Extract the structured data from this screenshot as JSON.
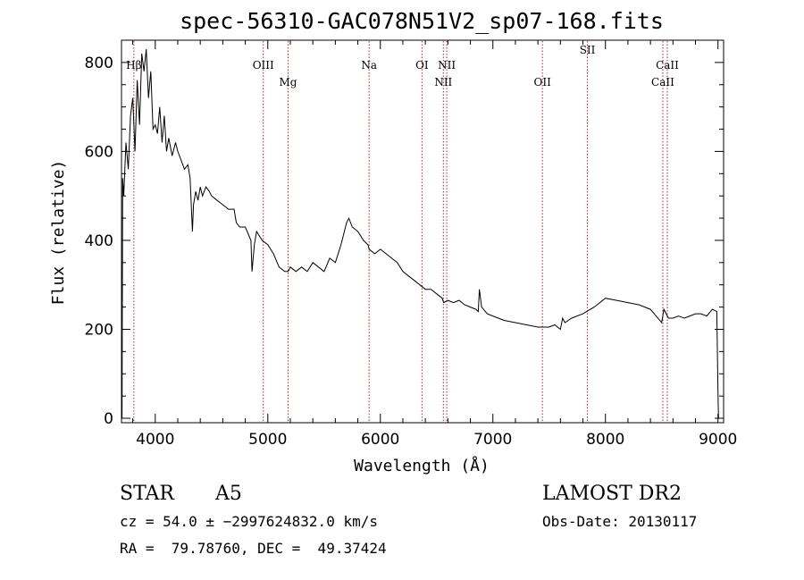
{
  "chart_data": {
    "type": "line",
    "title": "spec-56310-GAC078N51V2_sp07-168.fits",
    "xlabel": "Wavelength (Å)",
    "ylabel": "Flux (relative)",
    "xlim": [
      3700,
      9050
    ],
    "ylim": [
      -10,
      850
    ],
    "xticks": [
      4000,
      5000,
      6000,
      7000,
      8000,
      9000
    ],
    "yticks": [
      0,
      200,
      400,
      600,
      800
    ],
    "series": [
      {
        "x": [
          3705,
          3710,
          3720,
          3740,
          3760,
          3780,
          3800,
          3820,
          3840,
          3860,
          3880,
          3900,
          3920,
          3940,
          3960,
          3980,
          4000,
          4020,
          4040,
          4060,
          4080,
          4100,
          4120,
          4150,
          4180,
          4200,
          4230,
          4260,
          4290,
          4310,
          4330,
          4340,
          4360,
          4380,
          4400,
          4420,
          4450,
          4480,
          4500,
          4550,
          4600,
          4650,
          4700,
          4720,
          4750,
          4800,
          4850,
          4860,
          4880,
          4900,
          4950,
          5000,
          5050,
          5100,
          5150,
          5180,
          5200,
          5250,
          5300,
          5350,
          5400,
          5450,
          5500,
          5550,
          5600,
          5650,
          5700,
          5720,
          5750,
          5800,
          5850,
          5890,
          5900,
          5950,
          6000,
          6050,
          6100,
          6150,
          6200,
          6250,
          6300,
          6350,
          6400,
          6450,
          6500,
          6550,
          6563,
          6600,
          6650,
          6700,
          6750,
          6800,
          6850,
          6870,
          6880,
          6900,
          6950,
          7000,
          7100,
          7200,
          7300,
          7400,
          7450,
          7500,
          7550,
          7600,
          7620,
          7640,
          7700,
          7800,
          7900,
          8000,
          8100,
          8200,
          8300,
          8400,
          8450,
          8500,
          8520,
          8560,
          8600,
          8650,
          8700,
          8750,
          8800,
          8850,
          8900,
          8950,
          8990,
          9000,
          9005,
          9010
        ],
        "y": [
          0,
          540,
          500,
          620,
          560,
          680,
          720,
          600,
          760,
          660,
          820,
          780,
          830,
          720,
          780,
          650,
          660,
          640,
          700,
          620,
          680,
          600,
          630,
          590,
          620,
          600,
          580,
          560,
          570,
          540,
          420,
          480,
          510,
          490,
          520,
          500,
          520,
          510,
          500,
          490,
          480,
          470,
          470,
          440,
          430,
          430,
          400,
          330,
          390,
          420,
          400,
          390,
          370,
          340,
          330,
          330,
          340,
          330,
          340,
          330,
          350,
          340,
          330,
          360,
          350,
          390,
          440,
          450,
          430,
          420,
          400,
          390,
          380,
          370,
          380,
          370,
          360,
          350,
          330,
          320,
          310,
          300,
          290,
          290,
          280,
          270,
          260,
          265,
          260,
          265,
          255,
          250,
          245,
          240,
          290,
          250,
          235,
          230,
          220,
          215,
          210,
          205,
          205,
          205,
          210,
          200,
          225,
          215,
          225,
          235,
          250,
          270,
          265,
          260,
          255,
          245,
          230,
          215,
          245,
          225,
          225,
          230,
          225,
          230,
          235,
          235,
          230,
          245,
          240,
          60,
          0,
          0
        ]
      }
    ],
    "lines": [
      {
        "label": "Hβ",
        "x": 3810,
        "row": 1
      },
      {
        "label": "OIII",
        "x": 4960,
        "row": 1
      },
      {
        "label": "Mg",
        "x": 5180,
        "row": 2
      },
      {
        "label": "Na",
        "x": 5900,
        "row": 1
      },
      {
        "label": "OI",
        "x": 6370,
        "row": 1
      },
      {
        "label": "NII",
        "x": 6560,
        "row": 2
      },
      {
        "label": "NII",
        "x": 6590,
        "row": 1
      },
      {
        "label": "OII",
        "x": 7440,
        "row": 2
      },
      {
        "label": "SII",
        "x": 7840,
        "row": 0
      },
      {
        "label": "CaII",
        "x": 8510,
        "row": 2
      },
      {
        "label": "CaII",
        "x": 8550,
        "row": 1
      }
    ]
  },
  "info": {
    "class": "STAR",
    "subclass": "A5",
    "survey": "LAMOST DR2",
    "cz": "cz = 54.0 ± −2997624832.0 km/s",
    "obs_date": "Obs-Date: 20130117",
    "radec": "RA =  79.78760, DEC =  49.37424"
  },
  "colors": {
    "line_marker": "#b22222",
    "spectrum": "#000000"
  }
}
